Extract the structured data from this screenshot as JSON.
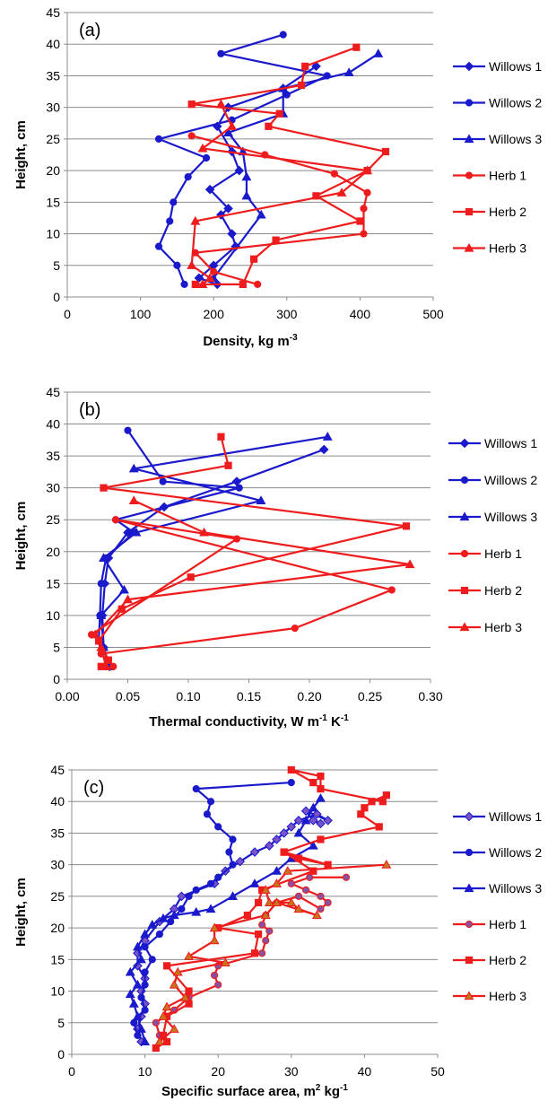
{
  "chart_data": [
    {
      "panel_label": "(a)",
      "type": "line",
      "xlabel": "Density, kg m",
      "xlabel_sup": "-3",
      "ylabel": "Height, cm",
      "xlim": [
        0,
        500
      ],
      "ylim": [
        0,
        45
      ],
      "xticks": [
        0,
        100,
        200,
        300,
        400,
        500
      ],
      "yticks": [
        0,
        5,
        10,
        15,
        20,
        25,
        30,
        35,
        40,
        45
      ],
      "grid": true,
      "legend_position": "right",
      "series": [
        {
          "name": "Willows 1",
          "color": "#1a1acc",
          "marker": "diamond",
          "marker_fill": "#1a1acc",
          "x": [
            205,
            180,
            200,
            230,
            225,
            210,
            220,
            195,
            235,
            225,
            205,
            220,
            295,
            340
          ],
          "y": [
            2,
            3,
            5,
            8,
            10,
            13,
            14,
            17,
            20,
            23,
            27,
            30,
            33,
            36.5
          ]
        },
        {
          "name": "Willows 2",
          "color": "#1a1acc",
          "marker": "circle",
          "marker_fill": "#1a1acc",
          "x": [
            160,
            150,
            125,
            140,
            145,
            165,
            190,
            125,
            225,
            300,
            355,
            210,
            295
          ],
          "y": [
            2,
            5,
            8,
            12,
            15,
            19,
            22,
            25,
            28,
            32,
            35,
            38.5,
            41.5
          ]
        },
        {
          "name": "Willows 3",
          "color": "#1a1acc",
          "marker": "triangle",
          "marker_fill": "#1a1acc",
          "x": [
            200,
            265,
            245,
            245,
            240,
            220,
            295,
            295,
            385,
            425
          ],
          "y": [
            3,
            13,
            16,
            19,
            23,
            26,
            29,
            33,
            35.5,
            38.5
          ]
        },
        {
          "name": "Herb 1",
          "color": "#ee1c1c",
          "marker": "circle",
          "marker_fill": "#ee1c1c",
          "x": [
            260,
            200,
            175,
            405,
            405,
            410,
            365,
            270,
            170
          ],
          "y": [
            2,
            4,
            7,
            10,
            14,
            16.5,
            19.5,
            22.5,
            25.5
          ]
        },
        {
          "name": "Herb 2",
          "color": "#ee1c1c",
          "marker": "square",
          "marker_fill": "#ee1c1c",
          "x": [
            175,
            240,
            255,
            285,
            400,
            340,
            410,
            435,
            275,
            290,
            170,
            320,
            325,
            395
          ],
          "y": [
            2,
            2,
            6,
            9,
            12,
            16,
            20,
            23,
            27,
            29,
            30.5,
            33.5,
            36.5,
            39.5
          ]
        },
        {
          "name": "Herb 3",
          "color": "#ee1c1c",
          "marker": "triangle",
          "marker_fill": "#ee1c1c",
          "x": [
            185,
            195,
            170,
            175,
            375,
            410,
            185,
            225,
            210
          ],
          "y": [
            2,
            3,
            5,
            12,
            16.5,
            20,
            23.5,
            27,
            30.5
          ]
        }
      ]
    },
    {
      "panel_label": "(b)",
      "type": "line",
      "xlabel": "Thermal conductivity, W m",
      "xlabel_sup": "-1",
      "xlabel_mid": " K",
      "xlabel_sup2": "-1",
      "ylabel": "Height, cm",
      "xlim": [
        0,
        0.3
      ],
      "ylim": [
        0,
        45
      ],
      "xticks": [
        0.0,
        0.05,
        0.1,
        0.15,
        0.2,
        0.25,
        0.3
      ],
      "xtick_labels": [
        "0.00",
        "0.05",
        "0.10",
        "0.15",
        "0.20",
        "0.25",
        "0.30"
      ],
      "yticks": [
        0,
        5,
        10,
        15,
        20,
        25,
        30,
        35,
        40,
        45
      ],
      "grid": true,
      "legend_position": "right",
      "series": [
        {
          "name": "Willows 1",
          "color": "#1a1acc",
          "marker": "diamond",
          "marker_fill": "#1a1acc",
          "x": [
            0.035,
            0.03,
            0.029,
            0.031,
            0.034,
            0.05,
            0.08,
            0.14,
            0.212
          ],
          "y": [
            2,
            5,
            10,
            15,
            19,
            23,
            27,
            31,
            36
          ]
        },
        {
          "name": "Willows 2",
          "color": "#1a1acc",
          "marker": "circle",
          "marker_fill": "#1a1acc",
          "x": [
            0.033,
            0.028,
            0.026,
            0.027,
            0.028,
            0.032,
            0.055,
            0.04,
            0.142,
            0.079,
            0.05
          ],
          "y": [
            3,
            4,
            6,
            10,
            15,
            19,
            23,
            25,
            30,
            31,
            39
          ]
        },
        {
          "name": "Willows 3",
          "color": "#1a1acc",
          "marker": "triangle",
          "marker_fill": "#1a1acc",
          "x": [
            0.035,
            0.03,
            0.028,
            0.047,
            0.03,
            0.057,
            0.16,
            0.055,
            0.215
          ],
          "y": [
            2,
            5,
            10,
            14,
            19,
            23,
            28,
            33,
            38
          ]
        },
        {
          "name": "Herb 1",
          "color": "#ee1c1c",
          "marker": "circle",
          "marker_fill": "#ee1c1c",
          "x": [
            0.038,
            0.034,
            0.028,
            0.188,
            0.268,
            0.04,
            0.14,
            0.02
          ],
          "y": [
            2,
            3,
            4,
            8,
            14,
            25,
            22,
            7
          ]
        },
        {
          "name": "Herb 2",
          "color": "#ee1c1c",
          "marker": "square",
          "marker_fill": "#ee1c1c",
          "x": [
            0.028,
            0.034,
            0.026,
            0.045,
            0.102,
            0.28,
            0.03,
            0.133,
            0.127
          ],
          "y": [
            2,
            3,
            6,
            11,
            16,
            24,
            30,
            33.5,
            38
          ]
        },
        {
          "name": "Herb 3",
          "color": "#ee1c1c",
          "marker": "triangle",
          "marker_fill": "#ee1c1c",
          "x": [
            0.032,
            0.028,
            0.023,
            0.05,
            0.283,
            0.113,
            0.055
          ],
          "y": [
            2,
            5,
            7,
            12.5,
            18,
            23,
            28
          ]
        }
      ]
    },
    {
      "panel_label": "(c)",
      "type": "line",
      "xlabel": "Specific surface area, m",
      "xlabel_sup": "2",
      "xlabel_mid": " kg",
      "xlabel_sup2": "-1",
      "ylabel": "Height, cm",
      "xlim": [
        0,
        50
      ],
      "ylim": [
        0,
        45
      ],
      "xticks": [
        0,
        10,
        20,
        30,
        40,
        50
      ],
      "yticks": [
        0,
        5,
        10,
        15,
        20,
        25,
        30,
        35,
        40,
        45
      ],
      "grid": true,
      "legend_position": "right",
      "series": [
        {
          "name": "Willows 1",
          "color": "#1a1acc",
          "marker": "diamond",
          "marker_fill": "#7b52c8",
          "x": [
            9.5,
            9,
            9.5,
            10,
            9.5,
            10,
            9,
            9,
            10,
            12,
            14,
            15,
            19.5,
            21,
            23,
            25,
            27,
            28,
            29,
            30,
            31,
            33.5,
            35,
            32,
            33,
            34
          ],
          "y": [
            2,
            4,
            6,
            8,
            10,
            12,
            14,
            16,
            18,
            21,
            23,
            25,
            27,
            29,
            30.5,
            32,
            33,
            34,
            35,
            36,
            37,
            38,
            37,
            38.5,
            37,
            36.5
          ]
        },
        {
          "name": "Willows 2",
          "color": "#1a1acc",
          "marker": "circle",
          "marker_fill": "#1a1acc",
          "x": [
            9,
            8.5,
            10,
            9.5,
            10,
            10,
            11,
            10,
            12,
            13.5,
            15,
            16,
            17,
            19,
            20,
            22,
            21.5,
            22,
            20,
            18.5,
            19,
            17,
            30
          ],
          "y": [
            3,
            5,
            7,
            9,
            11,
            13,
            15,
            17,
            19,
            21,
            23,
            25,
            26,
            27,
            28,
            30,
            32,
            34,
            36,
            38,
            40,
            42,
            43
          ]
        },
        {
          "name": "Willows 3",
          "color": "#1a1acc",
          "marker": "triangle",
          "marker_fill": "#1a1acc",
          "x": [
            10,
            9.5,
            9,
            8.5,
            8,
            9,
            8,
            9.5,
            9,
            10,
            11,
            12.5,
            14,
            17,
            19,
            22,
            25,
            28,
            30,
            33,
            31,
            32,
            33,
            34
          ],
          "y": [
            2,
            4,
            6,
            8,
            9.5,
            11,
            13,
            15,
            17,
            19,
            20.5,
            21.5,
            22,
            22.5,
            23,
            25,
            27,
            29,
            31,
            33,
            35,
            37,
            39,
            40.5
          ]
        },
        {
          "name": "Herb 1",
          "color": "#ee1c1c",
          "marker": "circle",
          "marker_fill": "#8a4fa0",
          "x": [
            12,
            11.5,
            14,
            16,
            20,
            19.5,
            20,
            26,
            26.5,
            27,
            26,
            26.5,
            28,
            31,
            34,
            35,
            34,
            32,
            30,
            32.5,
            37.5
          ],
          "y": [
            3,
            5,
            7,
            9,
            11,
            12.5,
            14,
            16,
            18,
            19.5,
            20.5,
            22,
            24,
            25,
            23,
            24,
            25,
            26,
            27,
            28,
            28
          ]
        },
        {
          "name": "Herb 2",
          "color": "#ee1c1c",
          "marker": "square",
          "marker_fill": "#ee1c1c",
          "x": [
            11.5,
            13,
            12.5,
            13,
            16,
            16,
            13,
            25,
            25.5,
            20,
            24,
            25.5,
            26,
            33,
            29,
            31,
            35,
            29,
            34,
            42,
            39.5,
            40,
            41,
            43,
            42.5,
            34,
            34,
            30,
            33
          ],
          "y": [
            1,
            2,
            3,
            6,
            8,
            10,
            14,
            16,
            19,
            20,
            22,
            24,
            26,
            29,
            32,
            31,
            30,
            32,
            34,
            36,
            38,
            39,
            40,
            41,
            40,
            42,
            44,
            45,
            43
          ]
        },
        {
          "name": "Herb 3",
          "color": "#ee1c1c",
          "marker": "triangle",
          "marker_fill": "#c8741a",
          "x": [
            12,
            14,
            12.5,
            13,
            15.5,
            14,
            14.5,
            21,
            16,
            19.5,
            19.5,
            26.5,
            28,
            33.5,
            31,
            30,
            27,
            26.5,
            28,
            29.5,
            43
          ],
          "y": [
            2,
            4,
            6,
            7.5,
            9,
            11,
            13,
            14.5,
            15.5,
            18,
            20,
            22,
            24,
            22,
            23,
            24,
            24,
            26,
            27,
            29,
            30
          ]
        }
      ]
    }
  ]
}
